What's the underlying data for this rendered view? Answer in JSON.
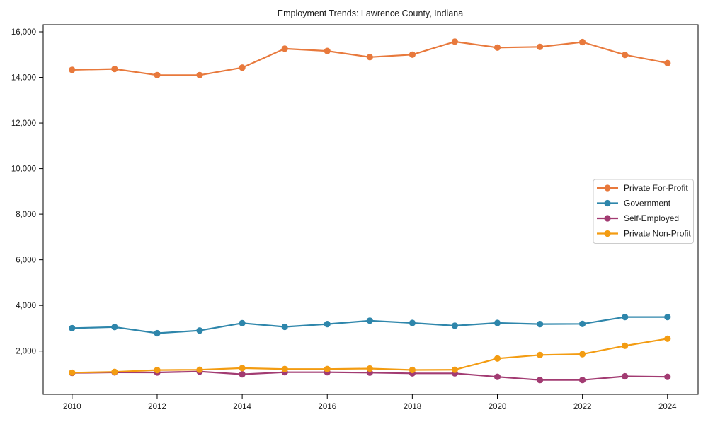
{
  "chart_data": {
    "type": "line",
    "title": "Employment Trends: Lawrence County, Indiana",
    "xlabel": "",
    "ylabel": "",
    "x": [
      2010,
      2011,
      2012,
      2013,
      2014,
      2015,
      2016,
      2017,
      2018,
      2019,
      2020,
      2021,
      2022,
      2023,
      2024
    ],
    "series": [
      {
        "name": "Private For-Profit",
        "color": "#E8793C",
        "values": [
          14330,
          14370,
          14100,
          14100,
          14430,
          15260,
          15160,
          14890,
          15000,
          15570,
          15310,
          15340,
          15550,
          14990,
          14630
        ]
      },
      {
        "name": "Government",
        "color": "#2E86AB",
        "values": [
          3000,
          3050,
          2780,
          2900,
          3220,
          3060,
          3180,
          3330,
          3230,
          3110,
          3230,
          3180,
          3190,
          3490,
          3490
        ]
      },
      {
        "name": "Self-Employed",
        "color": "#A23B72",
        "values": [
          1040,
          1065,
          1060,
          1100,
          980,
          1070,
          1070,
          1050,
          1020,
          1020,
          870,
          730,
          730,
          890,
          870
        ]
      },
      {
        "name": "Private Non-Profit",
        "color": "#F39C12",
        "values": [
          1050,
          1085,
          1165,
          1180,
          1250,
          1210,
          1210,
          1230,
          1170,
          1180,
          1670,
          1825,
          1865,
          2230,
          2540
        ]
      }
    ],
    "x_ticks": [
      2010,
      2012,
      2014,
      2016,
      2018,
      2020,
      2022,
      2024
    ],
    "x_tick_labels": [
      "2010",
      "2012",
      "2014",
      "2016",
      "2018",
      "2020",
      "2022",
      "2024"
    ],
    "y_ticks": [
      2000,
      4000,
      6000,
      8000,
      10000,
      12000,
      14000,
      16000
    ],
    "y_tick_labels": [
      "2,000",
      "4,000",
      "6,000",
      "8,000",
      "10,000",
      "12,000",
      "14,000",
      "16,000"
    ],
    "xlim": [
      2009.32,
      2024.72
    ],
    "ylim": [
      100,
      16310
    ],
    "grid": false,
    "legend_position": "center right",
    "marker": "circle",
    "colors": {
      "axis": "#000000",
      "text": "#1a1a1a",
      "background": "#ffffff",
      "legend_border": "#cccccc"
    }
  }
}
